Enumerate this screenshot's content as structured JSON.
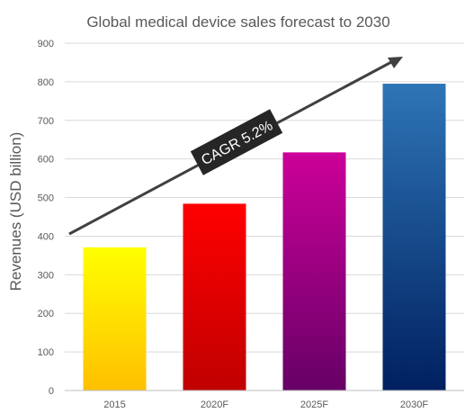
{
  "chart_data": {
    "type": "bar",
    "title": "Global medical device sales forecast to 2030",
    "xlabel": "",
    "ylabel": "Revenues (USD billion)",
    "ylim": [
      0,
      900
    ],
    "yticks": [
      "0",
      "100",
      "200",
      "300",
      "400",
      "500",
      "600",
      "700",
      "800",
      "900"
    ],
    "categories": [
      "2015",
      "2020F",
      "2025F",
      "2030F"
    ],
    "values": [
      371,
      484,
      617,
      795
    ],
    "grid": true,
    "legend": "none",
    "annotation": "CAGR 5.2%",
    "bar_gradients": [
      {
        "top": "#ffff00",
        "bottom": "#ffc000"
      },
      {
        "top": "#ff0000",
        "bottom": "#c00000"
      },
      {
        "top": "#cc0099",
        "bottom": "#660066"
      },
      {
        "top": "#2e75b6",
        "bottom": "#002060"
      }
    ],
    "colors": {
      "grid": "#d9d9d9",
      "axis": "#bfbfbf",
      "text": "#595959",
      "arrow": "#404040",
      "label_box": "#262626",
      "label_text": "#ffffff"
    }
  }
}
